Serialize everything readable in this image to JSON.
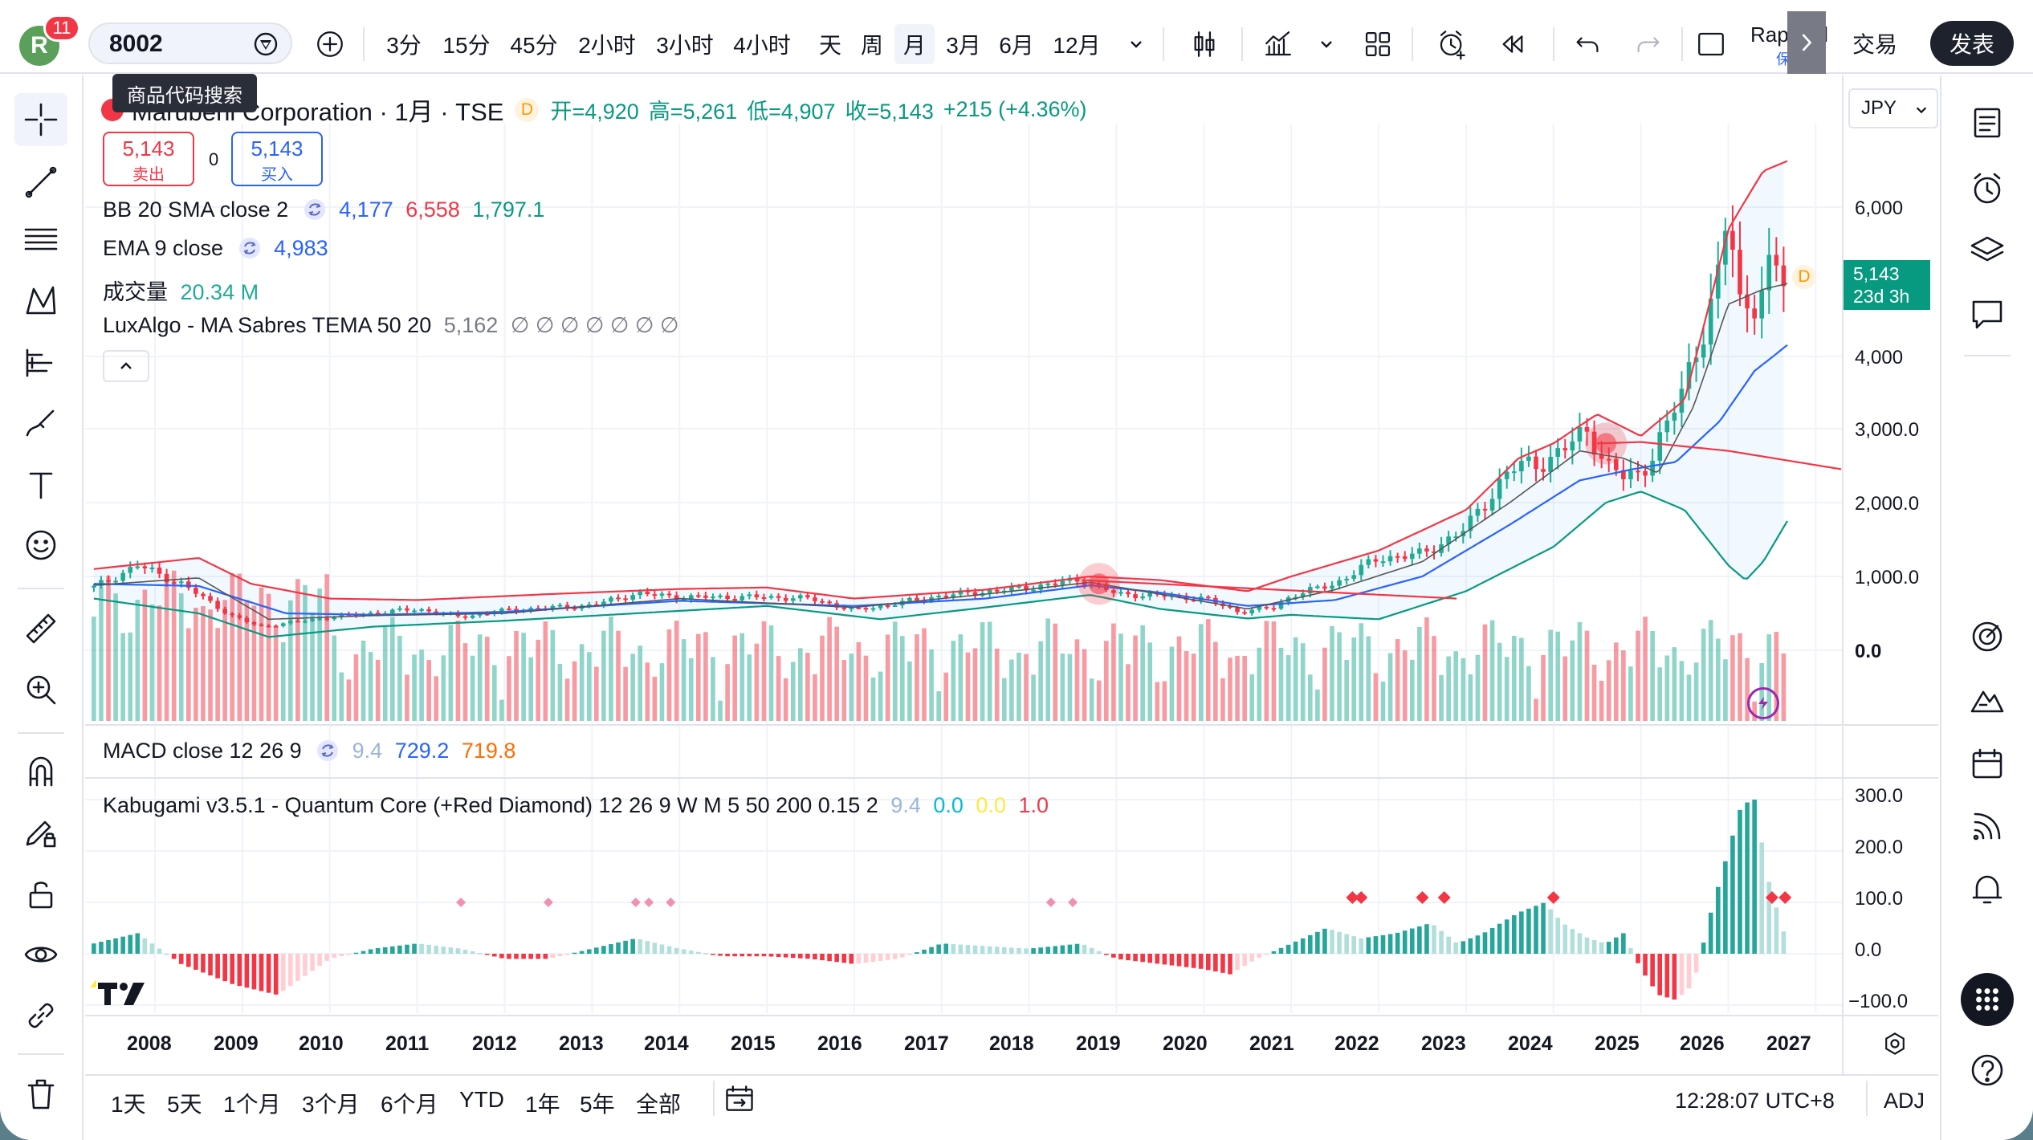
{
  "topbar": {
    "avatar_letter": "R",
    "notification_count": "11",
    "symbol": "8002",
    "tooltip": "商品代码搜索",
    "intervals": [
      "3分",
      "15分",
      "45分",
      "2小时",
      "3小时",
      "4小时",
      "天",
      "周",
      "月",
      "3月",
      "6月",
      "12月"
    ],
    "active_interval": "月",
    "user_name": "Raphael",
    "user_save": "保存",
    "trade_label": "交易",
    "publish_label": "发表"
  },
  "symbol_info": {
    "title": "Marubeni Corporation · 1月 · TSE",
    "d_badge": "D",
    "ohlc_text": "开=4,920 高=5,261 低=4,907 收=5,143 +215 (+4.36%)",
    "open": "开=4,920",
    "high": "高=5,261",
    "low": "低=4,907",
    "close": "收=5,143",
    "change": "+215 (+4.36%)"
  },
  "order": {
    "sell_price": "5,143",
    "sell_label": "卖出",
    "spread": "0",
    "buy_price": "5,143",
    "buy_label": "买入"
  },
  "indicators": {
    "bb": {
      "name": "BB 20 SMA close 2",
      "basis": "4,177",
      "upper": "6,558",
      "lower": "1,797.1"
    },
    "ema": {
      "name": "EMA 9 close",
      "value": "4,983"
    },
    "volume": {
      "name": "成交量",
      "value": "20.34 M"
    },
    "luxalgo": {
      "name": "LuxAlgo - MA Sabres TEMA 50 20",
      "value": "5,162",
      "na": "∅ ∅ ∅ ∅ ∅ ∅ ∅"
    },
    "macd": {
      "name": "MACD close 12 26 9",
      "hist": "9.4",
      "macd": "729.2",
      "signal": "719.8"
    },
    "kabugami": {
      "name": "Kabugami v3.5.1 - Quantum Core (+Red Diamond) 12 26 9 W M 5 50 200 0.15 2",
      "v1": "9.4",
      "v2": "0.0",
      "v3": "0.0",
      "v4": "1.0"
    }
  },
  "axis": {
    "currency": "JPY",
    "price_ticks": [
      "6,000",
      "4,000",
      "3,000.0",
      "2,000.0",
      "1,000.0",
      "0.0"
    ],
    "last_price": "5,143",
    "countdown": "23d 3h",
    "osc_ticks": [
      "300.0",
      "200.0",
      "100.0",
      "0.0",
      "−100.0"
    ],
    "years": [
      "2008",
      "2009",
      "2010",
      "2011",
      "2012",
      "2013",
      "2014",
      "2015",
      "2016",
      "2017",
      "2018",
      "2019",
      "2020",
      "2021",
      "2022",
      "2023",
      "2024",
      "2025",
      "2026",
      "2027"
    ]
  },
  "bottombar": {
    "ranges": [
      "1天",
      "5天",
      "1个月",
      "3个月",
      "6个月",
      "YTD",
      "1年",
      "5年",
      "全部"
    ],
    "clock": "12:28:07 UTC+8",
    "adj": "ADJ"
  },
  "colors": {
    "up": "#22ab94",
    "down": "#f23645",
    "bb_upper": "#f23645",
    "bb_lower": "#089981",
    "bb_basis": "#2962ff",
    "accent": "#2962ff"
  },
  "chart_data": {
    "type": "candlestick",
    "title": "Marubeni Corporation · 1月 · TSE",
    "x_range": [
      2007.2,
      2027.3
    ],
    "y_range": [
      0,
      6600
    ],
    "price_anchors": {
      "t": [
        2007.3,
        2007.8,
        2008.3,
        2008.9,
        2009.2,
        2010.0,
        2011.0,
        2011.5,
        2012.0,
        2013.0,
        2013.5,
        2014.0,
        2015.0,
        2015.5,
        2016.0,
        2016.5,
        2017.0,
        2018.0,
        2018.6,
        2019.0,
        2019.5,
        2020.0,
        2020.4,
        2020.8,
        2021.0,
        2021.5,
        2022.0,
        2022.5,
        2023.0,
        2023.5,
        2024.0,
        2024.4,
        2024.6,
        2024.8,
        2025.0,
        2025.3,
        2025.6,
        2025.9,
        2026.0,
        2026.15,
        2026.3,
        2026.5,
        2026.7
      ],
      "close": [
        850,
        1150,
        900,
        450,
        320,
        450,
        560,
        450,
        540,
        610,
        770,
        720,
        720,
        700,
        540,
        640,
        740,
        850,
        960,
        760,
        740,
        700,
        520,
        580,
        740,
        900,
        1250,
        1300,
        1650,
        2450,
        2600,
        3000,
        2500,
        2350,
        2400,
        3000,
        4000,
        5000,
        6050,
        4600,
        4750,
        5100,
        5143
      ]
    },
    "bb_lower_anchors": {
      "t": [
        2007.3,
        2008.5,
        2009.3,
        2010.5,
        2012.0,
        2013.5,
        2015.0,
        2016.3,
        2017.5,
        2018.7,
        2019.5,
        2020.5,
        2021.0,
        2022.0,
        2023.0,
        2024.0,
        2024.6,
        2025.0,
        2025.5,
        2026.0,
        2026.2,
        2026.4,
        2026.7
      ],
      "value": [
        700,
        500,
        180,
        320,
        400,
        500,
        600,
        420,
        580,
        750,
        560,
        430,
        480,
        420,
        800,
        1400,
        2000,
        2150,
        1900,
        1150,
        950,
        1200,
        1800
      ]
    },
    "bb_upper_anchors": {
      "t": [
        2007.3,
        2008.5,
        2009.1,
        2010.0,
        2011.0,
        2012.5,
        2014.0,
        2015.0,
        2016.0,
        2017.5,
        2018.7,
        2019.5,
        2020.5,
        2021.0,
        2022.0,
        2023.0,
        2023.6,
        2024.0,
        2024.5,
        2025.0,
        2025.5,
        2026.0,
        2026.4,
        2026.7
      ],
      "value": [
        1100,
        1250,
        900,
        700,
        680,
        760,
        830,
        850,
        700,
        820,
        1000,
        950,
        800,
        1000,
        1350,
        1900,
        2600,
        2800,
        3200,
        2900,
        3400,
        5700,
        6500,
        6650
      ]
    },
    "ema_anchors": {
      "t": [
        2007.3,
        2008.5,
        2009.3,
        2010.5,
        2012.0,
        2014.0,
        2016.0,
        2017.5,
        2018.7,
        2019.5,
        2020.5,
        2021.5,
        2022.5,
        2023.5,
        2024.3,
        2024.8,
        2025.2,
        2025.6,
        2026.0,
        2026.4,
        2026.7
      ],
      "value": [
        880,
        980,
        420,
        470,
        500,
        700,
        580,
        760,
        920,
        760,
        560,
        820,
        1200,
        2000,
        2700,
        2600,
        2400,
        3300,
        4700,
        4900,
        4983
      ]
    },
    "bb_basis_anchors": {
      "t": [
        2007.3,
        2008.5,
        2009.5,
        2010.5,
        2012.0,
        2014.0,
        2016.0,
        2017.5,
        2018.7,
        2019.5,
        2020.5,
        2021.5,
        2022.5,
        2023.5,
        2024.3,
        2024.9,
        2025.4,
        2025.9,
        2026.3,
        2026.7
      ],
      "value": [
        900,
        870,
        500,
        480,
        520,
        670,
        600,
        700,
        880,
        780,
        600,
        680,
        1000,
        1700,
        2300,
        2450,
        2550,
        3100,
        3800,
        4177
      ]
    },
    "lux_line": {
      "t": [
        2018.6,
        2022.9
      ],
      "value": [
        950,
        700
      ],
      "t2": [
        2024.5,
        2025.0,
        2026.0,
        2027.3
      ],
      "value2": [
        2800,
        2820,
        2700,
        2450
      ]
    },
    "markers": [
      {
        "t": 2018.8,
        "price": 900
      },
      {
        "t": 2024.6,
        "price": 2800
      }
    ],
    "macd_hist_anchors": {
      "t": [
        2007.3,
        2007.8,
        2008.3,
        2008.9,
        2009.4,
        2010.0,
        2010.5,
        2011.0,
        2011.5,
        2012.0,
        2012.5,
        2013.0,
        2013.5,
        2014.0,
        2014.5,
        2015.0,
        2015.5,
        2016.0,
        2016.5,
        2017.0,
        2017.5,
        2018.0,
        2018.6,
        2019.0,
        2019.5,
        2020.0,
        2020.3,
        2020.6,
        2021.0,
        2021.4,
        2021.8,
        2022.2,
        2022.6,
        2022.9,
        2023.2,
        2023.6,
        2023.9,
        2024.1,
        2024.4,
        2024.6,
        2024.8,
        2025.0,
        2025.2,
        2025.4,
        2025.6,
        2025.8,
        2026.0,
        2026.15,
        2026.3,
        2026.45,
        2026.6,
        2026.7
      ],
      "value": [
        20,
        40,
        -20,
        -60,
        -80,
        -10,
        10,
        20,
        10,
        -10,
        -10,
        10,
        30,
        10,
        -5,
        -5,
        -10,
        -20,
        -10,
        20,
        15,
        10,
        20,
        -10,
        -20,
        -30,
        -40,
        -10,
        20,
        50,
        30,
        40,
        60,
        20,
        40,
        80,
        100,
        60,
        30,
        20,
        40,
        -30,
        -80,
        -90,
        -60,
        80,
        200,
        290,
        300,
        150,
        60,
        10
      ]
    },
    "diamonds": [
      2011.5,
      2012.5,
      2013.5,
      2013.65,
      2013.9,
      2018.25,
      2018.5,
      2021.7,
      2021.8,
      2022.5,
      2022.75,
      2024.0,
      2026.5,
      2026.65
    ]
  }
}
